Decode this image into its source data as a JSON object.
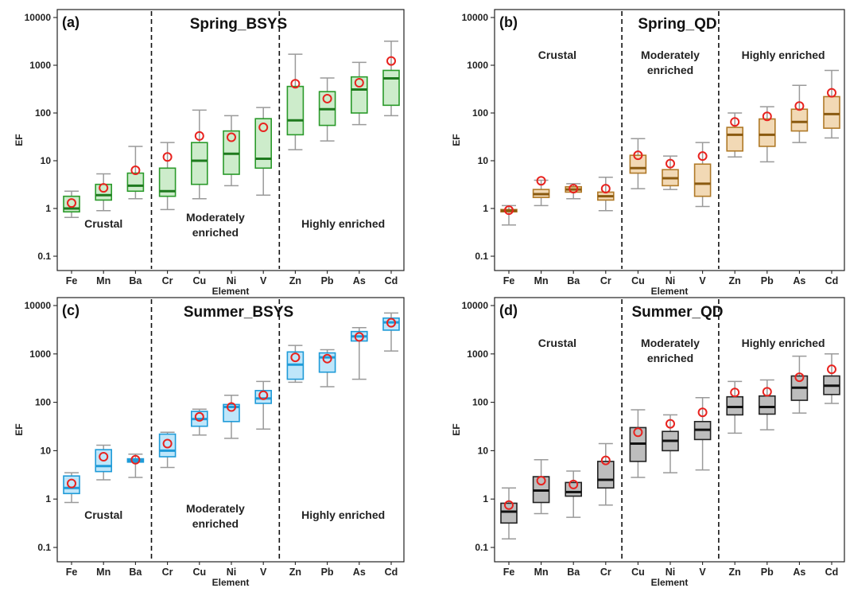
{
  "chart_data": [
    {
      "type": "box",
      "panel": "(a)",
      "title": "Spring_BSYS",
      "xlabel": "Element",
      "ylabel": "EF",
      "yscale": "log",
      "ylim": [
        0.1,
        10000
      ],
      "yticks": [
        "0.1",
        "1",
        "10",
        "100",
        "1000",
        "10000"
      ],
      "color": {
        "fill": "#cdeccb",
        "stroke": "#2a9a2a",
        "median": "#1e7a1e"
      },
      "categories": [
        "Fe",
        "Mn",
        "Ba",
        "Cr",
        "Cu",
        "Ni",
        "V",
        "Zn",
        "Pb",
        "As",
        "Cd"
      ],
      "boxes": [
        {
          "whisker_low": 0.65,
          "q1": 0.85,
          "median": 1.0,
          "q3": 1.8,
          "whisker_high": 2.3,
          "mean": 1.3
        },
        {
          "whisker_low": 0.9,
          "q1": 1.5,
          "median": 1.9,
          "q3": 3.2,
          "whisker_high": 5.3,
          "mean": 2.7
        },
        {
          "whisker_low": 1.6,
          "q1": 2.3,
          "median": 3.0,
          "q3": 5.5,
          "whisker_high": 20,
          "mean": 6.3
        },
        {
          "whisker_low": 0.95,
          "q1": 1.8,
          "median": 2.3,
          "q3": 7.0,
          "whisker_high": 24,
          "mean": 12
        },
        {
          "whisker_low": 1.6,
          "q1": 3.2,
          "median": 10,
          "q3": 24,
          "whisker_high": 115,
          "mean": 33
        },
        {
          "whisker_low": 3.0,
          "q1": 5.2,
          "median": 14,
          "q3": 42,
          "whisker_high": 88,
          "mean": 31
        },
        {
          "whisker_low": 1.9,
          "q1": 7.0,
          "median": 11,
          "q3": 76,
          "whisker_high": 130,
          "mean": 50
        },
        {
          "whisker_low": 17,
          "q1": 35,
          "median": 70,
          "q3": 360,
          "whisker_high": 1700,
          "mean": 410
        },
        {
          "whisker_low": 26,
          "q1": 55,
          "median": 120,
          "q3": 280,
          "whisker_high": 540,
          "mean": 200
        },
        {
          "whisker_low": 57,
          "q1": 100,
          "median": 310,
          "q3": 570,
          "whisker_high": 1150,
          "mean": 430
        },
        {
          "whisker_low": 88,
          "q1": 145,
          "median": 530,
          "q3": 780,
          "whisker_high": 3200,
          "mean": 1230
        }
      ],
      "groups": [
        {
          "label": [
            "Crustal"
          ],
          "from": 0,
          "to": 3,
          "position": "bottom"
        },
        {
          "label": [
            "Moderately",
            "enriched"
          ],
          "from": 3,
          "to": 7,
          "position": "bottom"
        },
        {
          "label": [
            "Highly enriched"
          ],
          "from": 7,
          "to": 11,
          "position": "bottom"
        }
      ]
    },
    {
      "type": "box",
      "panel": "(b)",
      "title": "Spring_QD",
      "xlabel": "Element",
      "ylabel": "EF",
      "yscale": "log",
      "ylim": [
        0.1,
        10000
      ],
      "yticks": [
        "0.1",
        "1",
        "10",
        "100",
        "1000",
        "10000"
      ],
      "color": {
        "fill": "#f2d9b5",
        "stroke": "#b07a28",
        "median": "#8a5a10"
      },
      "categories": [
        "Fe",
        "Mn",
        "Ba",
        "Cr",
        "Cu",
        "Ni",
        "V",
        "Zn",
        "Pb",
        "As",
        "Cd"
      ],
      "boxes": [
        {
          "whisker_low": 0.45,
          "q1": 0.85,
          "median": 0.9,
          "q3": 0.95,
          "whisker_high": 1.15,
          "mean": 0.92
        },
        {
          "whisker_low": 1.15,
          "q1": 1.7,
          "median": 2.0,
          "q3": 2.5,
          "whisker_high": 3.9,
          "mean": 3.8
        },
        {
          "whisker_low": 1.6,
          "q1": 2.2,
          "median": 2.5,
          "q3": 2.85,
          "whisker_high": 3.3,
          "mean": 2.6
        },
        {
          "whisker_low": 0.9,
          "q1": 1.5,
          "median": 1.8,
          "q3": 2.2,
          "whisker_high": 4.5,
          "mean": 2.6
        },
        {
          "whisker_low": 2.6,
          "q1": 5.5,
          "median": 7.0,
          "q3": 13,
          "whisker_high": 29,
          "mean": 13
        },
        {
          "whisker_low": 2.5,
          "q1": 3.0,
          "median": 4.3,
          "q3": 6.5,
          "whisker_high": 12.5,
          "mean": 8.7
        },
        {
          "whisker_low": 1.1,
          "q1": 1.8,
          "median": 3.3,
          "q3": 8.5,
          "whisker_high": 24,
          "mean": 12.5
        },
        {
          "whisker_low": 12,
          "q1": 16,
          "median": 35,
          "q3": 50,
          "whisker_high": 100,
          "mean": 65
        },
        {
          "whisker_low": 9.5,
          "q1": 20,
          "median": 35,
          "q3": 75,
          "whisker_high": 135,
          "mean": 85
        },
        {
          "whisker_low": 24,
          "q1": 42,
          "median": 65,
          "q3": 120,
          "whisker_high": 380,
          "mean": 140
        },
        {
          "whisker_low": 30,
          "q1": 48,
          "median": 95,
          "q3": 220,
          "whisker_high": 780,
          "mean": 265
        }
      ],
      "groups": [
        {
          "label": [
            "Crustal"
          ],
          "from": 0,
          "to": 4,
          "position": "top"
        },
        {
          "label": [
            "Moderately",
            "enriched"
          ],
          "from": 4,
          "to": 7,
          "position": "top"
        },
        {
          "label": [
            "Highly enriched"
          ],
          "from": 7,
          "to": 11,
          "position": "top"
        }
      ]
    },
    {
      "type": "box",
      "panel": "(c)",
      "title": "Summer_BSYS",
      "xlabel": "Element",
      "ylabel": "EF",
      "yscale": "log",
      "ylim": [
        0.1,
        10000
      ],
      "yticks": [
        "0.1",
        "1",
        "10",
        "100",
        "1000",
        "10000"
      ],
      "color": {
        "fill": "#bfe6fa",
        "stroke": "#1f9bd8",
        "median": "#1f9bd8"
      },
      "categories": [
        "Fe",
        "Mn",
        "Ba",
        "Cr",
        "Cu",
        "Ni",
        "V",
        "Zn",
        "Pb",
        "As",
        "Cd"
      ],
      "boxes": [
        {
          "whisker_low": 0.85,
          "q1": 1.3,
          "median": 1.7,
          "q3": 3.0,
          "whisker_high": 3.5,
          "mean": 2.1
        },
        {
          "whisker_low": 2.5,
          "q1": 3.7,
          "median": 4.8,
          "q3": 10.5,
          "whisker_high": 13,
          "mean": 7.5
        },
        {
          "whisker_low": 2.8,
          "q1": 5.8,
          "median": 6.3,
          "q3": 6.8,
          "whisker_high": 8.5,
          "mean": 6.5
        },
        {
          "whisker_low": 4.5,
          "q1": 7.5,
          "median": 10,
          "q3": 22,
          "whisker_high": 24,
          "mean": 14
        },
        {
          "whisker_low": 21,
          "q1": 32,
          "median": 45,
          "q3": 65,
          "whisker_high": 72,
          "mean": 50
        },
        {
          "whisker_low": 18,
          "q1": 40,
          "median": 80,
          "q3": 90,
          "whisker_high": 140,
          "mean": 80
        },
        {
          "whisker_low": 28,
          "q1": 95,
          "median": 120,
          "q3": 175,
          "whisker_high": 270,
          "mean": 140
        },
        {
          "whisker_low": 260,
          "q1": 300,
          "median": 600,
          "q3": 1100,
          "whisker_high": 1500,
          "mean": 850
        },
        {
          "whisker_low": 210,
          "q1": 420,
          "median": 850,
          "q3": 1050,
          "whisker_high": 1220,
          "mean": 800
        },
        {
          "whisker_low": 300,
          "q1": 1850,
          "median": 2300,
          "q3": 2900,
          "whisker_high": 3500,
          "mean": 2250
        },
        {
          "whisker_low": 1150,
          "q1": 3100,
          "median": 4500,
          "q3": 5500,
          "whisker_high": 7000,
          "mean": 4400
        }
      ],
      "groups": [
        {
          "label": [
            "Crustal"
          ],
          "from": 0,
          "to": 3,
          "position": "bottom"
        },
        {
          "label": [
            "Moderately",
            "enriched"
          ],
          "from": 3,
          "to": 7,
          "position": "bottom"
        },
        {
          "label": [
            "Highly enriched"
          ],
          "from": 7,
          "to": 11,
          "position": "bottom"
        }
      ]
    },
    {
      "type": "box",
      "panel": "(d)",
      "title": "Summer_QD",
      "xlabel": "Element",
      "ylabel": "EF",
      "yscale": "log",
      "ylim": [
        0.1,
        10000
      ],
      "yticks": [
        "0.1",
        "1",
        "10",
        "100",
        "1000",
        "10000"
      ],
      "color": {
        "fill": "#bdbdbd",
        "stroke": "#222222",
        "median": "#111111"
      },
      "categories": [
        "Fe",
        "Mn",
        "Ba",
        "Cr",
        "Cu",
        "Ni",
        "V",
        "Zn",
        "Pb",
        "As",
        "Cd"
      ],
      "boxes": [
        {
          "whisker_low": 0.15,
          "q1": 0.32,
          "median": 0.55,
          "q3": 0.82,
          "whisker_high": 1.7,
          "mean": 0.75
        },
        {
          "whisker_low": 0.5,
          "q1": 0.85,
          "median": 1.5,
          "q3": 2.9,
          "whisker_high": 6.5,
          "mean": 2.4
        },
        {
          "whisker_low": 0.42,
          "q1": 1.15,
          "median": 1.4,
          "q3": 2.2,
          "whisker_high": 3.8,
          "mean": 2.0
        },
        {
          "whisker_low": 0.75,
          "q1": 1.7,
          "median": 2.5,
          "q3": 6.0,
          "whisker_high": 14,
          "mean": 6.3
        },
        {
          "whisker_low": 2.8,
          "q1": 6.0,
          "median": 14,
          "q3": 30,
          "whisker_high": 70,
          "mean": 24
        },
        {
          "whisker_low": 3.5,
          "q1": 10,
          "median": 16,
          "q3": 25,
          "whisker_high": 55,
          "mean": 36
        },
        {
          "whisker_low": 4.0,
          "q1": 17,
          "median": 27,
          "q3": 40,
          "whisker_high": 125,
          "mean": 62
        },
        {
          "whisker_low": 23,
          "q1": 55,
          "median": 80,
          "q3": 130,
          "whisker_high": 270,
          "mean": 160
        },
        {
          "whisker_low": 27,
          "q1": 57,
          "median": 80,
          "q3": 135,
          "whisker_high": 290,
          "mean": 165
        },
        {
          "whisker_low": 60,
          "q1": 110,
          "median": 200,
          "q3": 350,
          "whisker_high": 900,
          "mean": 330
        },
        {
          "whisker_low": 95,
          "q1": 145,
          "median": 220,
          "q3": 350,
          "whisker_high": 1000,
          "mean": 480
        }
      ],
      "groups": [
        {
          "label": [
            "Crustal"
          ],
          "from": 0,
          "to": 4,
          "position": "top"
        },
        {
          "label": [
            "Moderately",
            "enriched"
          ],
          "from": 4,
          "to": 7,
          "position": "top"
        },
        {
          "label": [
            "Highly enriched"
          ],
          "from": 7,
          "to": 11,
          "position": "top"
        }
      ]
    }
  ]
}
